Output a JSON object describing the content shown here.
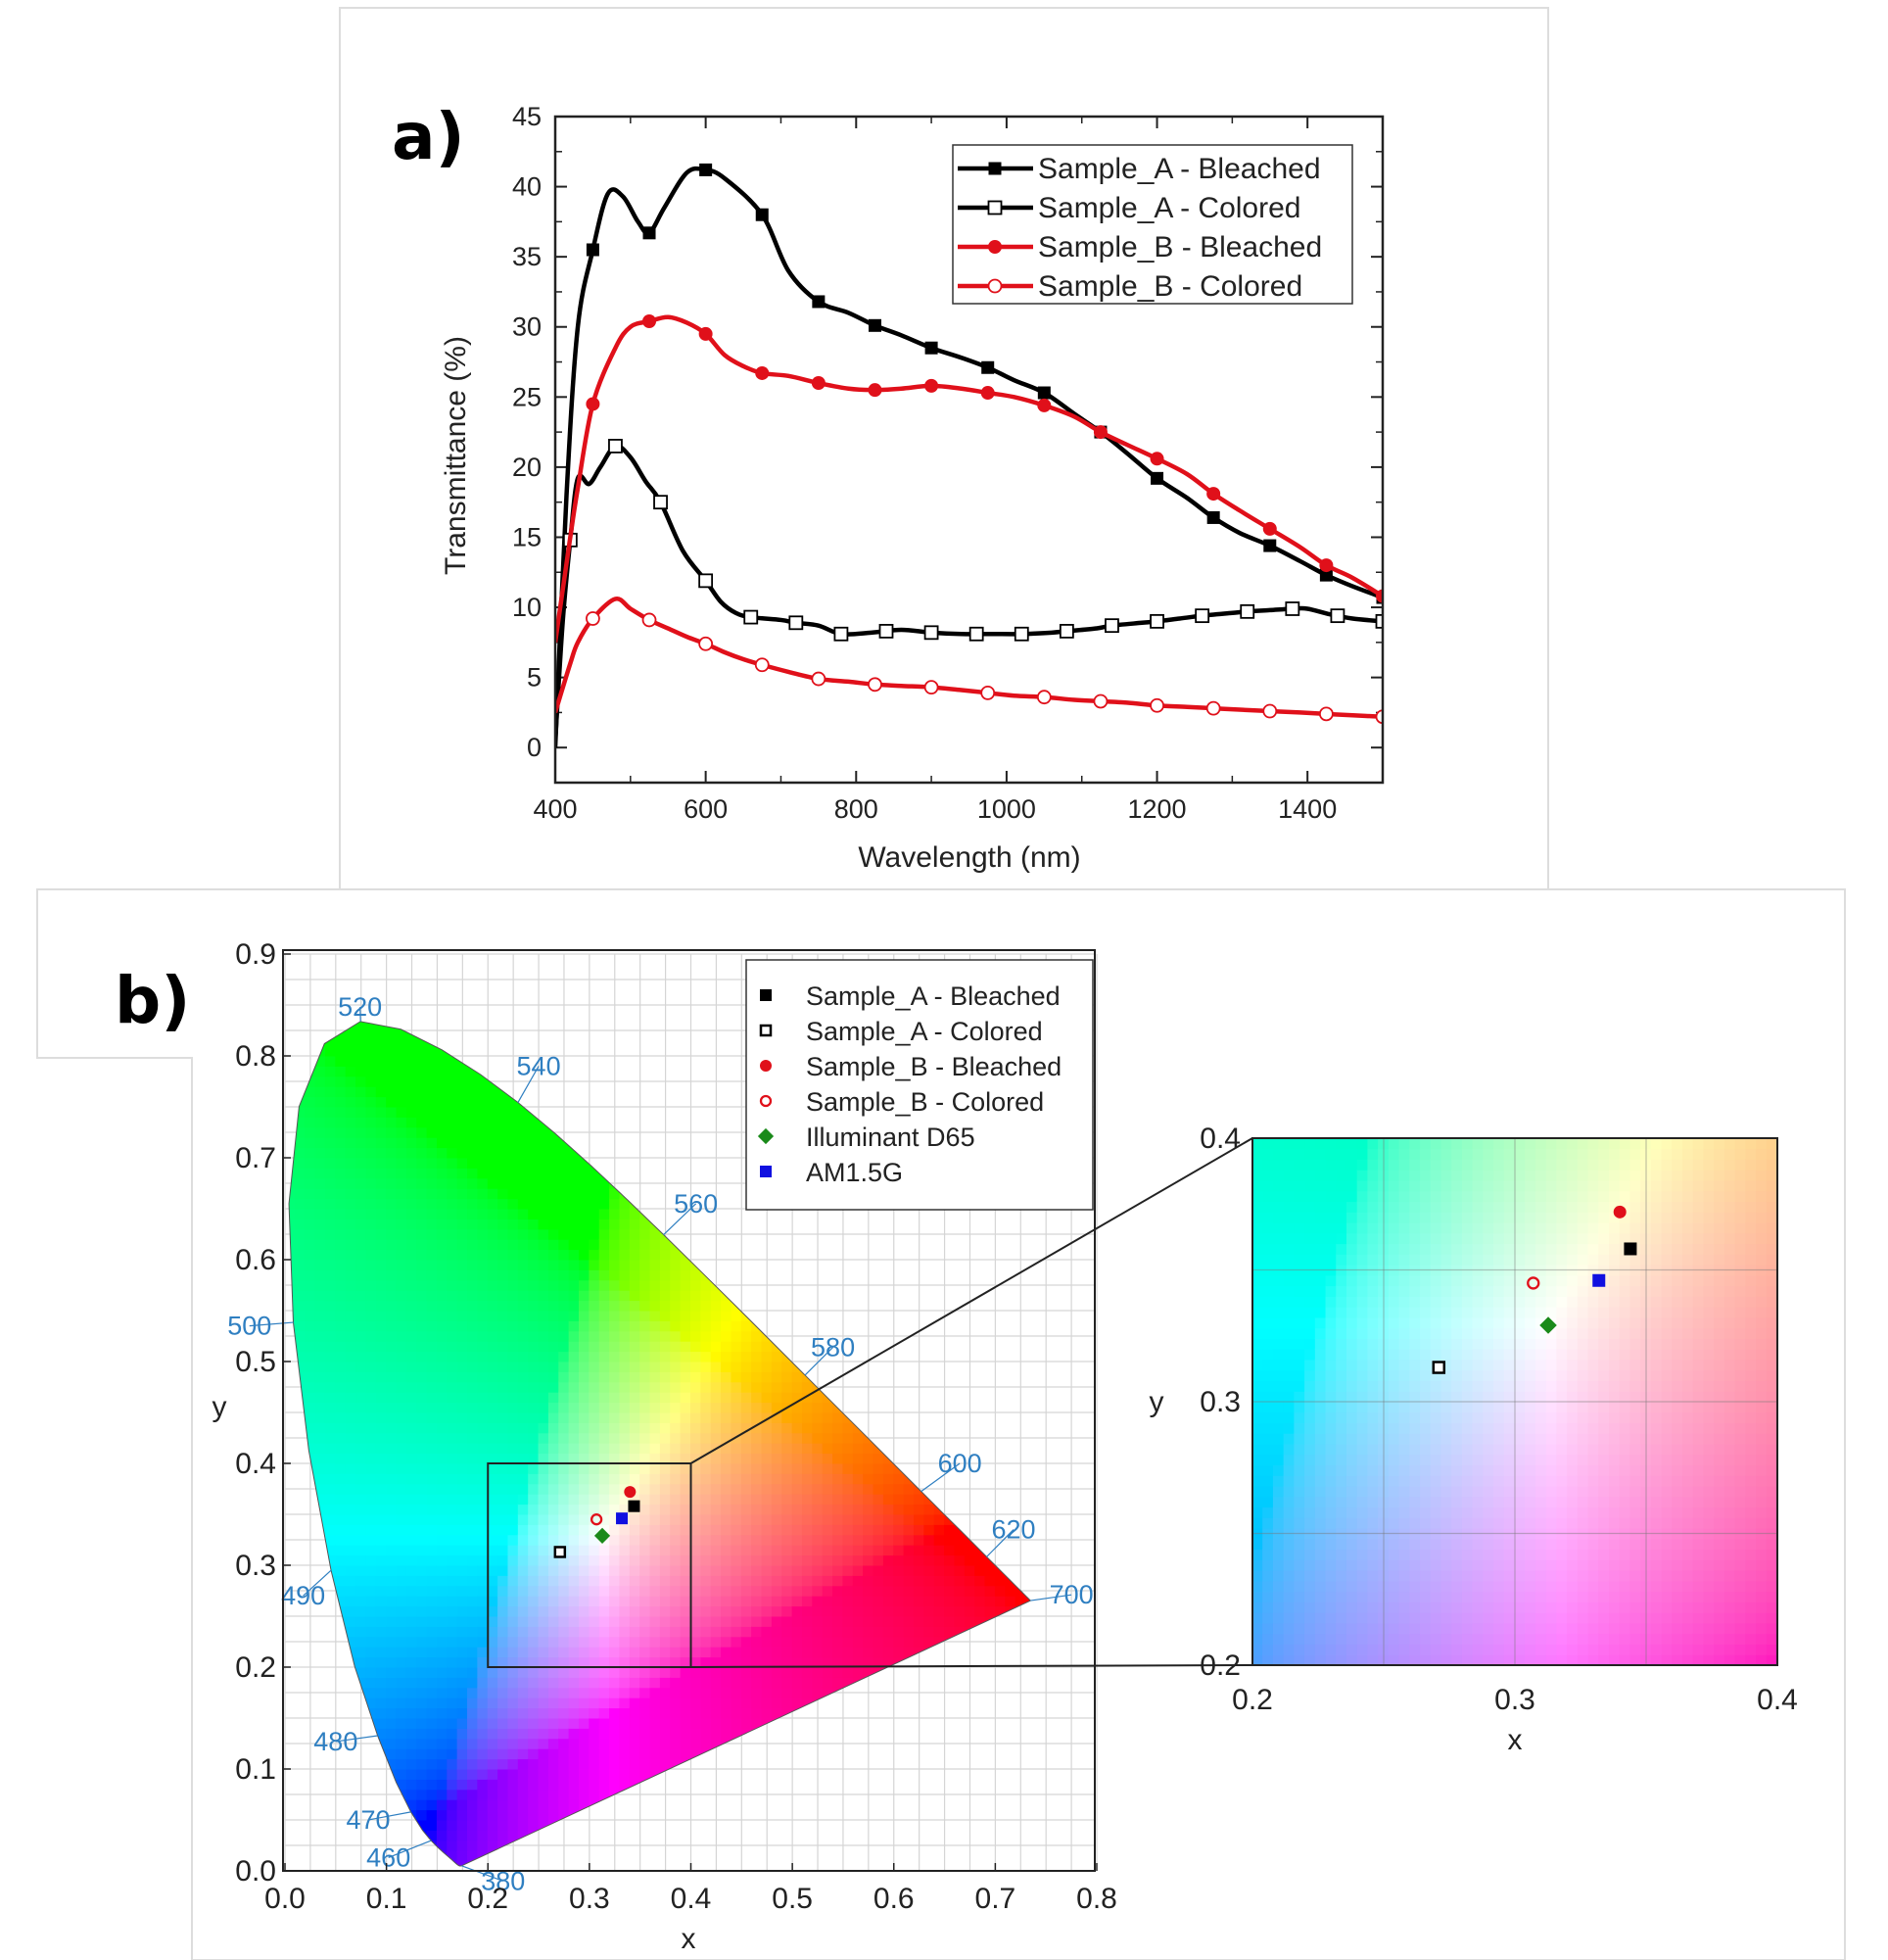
{
  "panel_a": {
    "label": "a)",
    "chart_data": {
      "type": "line",
      "xlabel": "Wavelength (nm)",
      "ylabel": "Transmittance (%)",
      "xlim": [
        400,
        1500
      ],
      "ylim": [
        -2.5,
        45
      ],
      "x_ticks": [
        400,
        600,
        800,
        1000,
        1200,
        1400
      ],
      "y_ticks": [
        0,
        5,
        10,
        15,
        20,
        25,
        30,
        35,
        40,
        45
      ],
      "legend_position": "top-right",
      "series": [
        {
          "name": "Sample_A - Bleached",
          "color": "#000000",
          "marker": "filled-square",
          "x": [
            400,
            415,
            430,
            450,
            470,
            490,
            510,
            525,
            545,
            575,
            600,
            625,
            675,
            710,
            750,
            790,
            825,
            860,
            900,
            940,
            975,
            1010,
            1050,
            1090,
            1125,
            1160,
            1200,
            1240,
            1275,
            1310,
            1350,
            1390,
            1425,
            1460,
            1500
          ],
          "y": [
            0,
            18,
            30,
            35.5,
            39.5,
            39.3,
            37.5,
            36.7,
            38.5,
            41,
            41.2,
            40.6,
            38,
            34,
            31.8,
            31,
            30.1,
            29.4,
            28.5,
            27.8,
            27.1,
            26.2,
            25.3,
            23.8,
            22.5,
            21,
            19.2,
            17.8,
            16.4,
            15.3,
            14.4,
            13.3,
            12.3,
            11.5,
            10.7
          ]
        },
        {
          "name": "Sample_A - Colored",
          "color": "#000000",
          "marker": "open-square",
          "x": [
            400,
            410,
            420,
            430,
            445,
            460,
            480,
            500,
            520,
            540,
            570,
            600,
            620,
            640,
            660,
            700,
            720,
            750,
            780,
            820,
            860,
            900,
            940,
            980,
            1020,
            1060,
            1080,
            1120,
            1140,
            1180,
            1200,
            1230,
            1260,
            1300,
            1320,
            1350,
            1380,
            1400,
            1430,
            1460,
            1500
          ],
          "y": [
            0.5,
            9,
            14.8,
            19.2,
            18.8,
            20,
            21.5,
            20.7,
            19,
            17.5,
            14,
            11.9,
            10.4,
            9.6,
            9.3,
            9.1,
            8.9,
            8.7,
            8.1,
            8.2,
            8.4,
            8.2,
            8.1,
            8.1,
            8.1,
            8.2,
            8.3,
            8.5,
            8.7,
            8.9,
            9.0,
            9.2,
            9.4,
            9.6,
            9.7,
            9.8,
            9.9,
            9.9,
            9.5,
            9.2,
            9.0
          ]
        },
        {
          "name": "Sample_B - Bleached",
          "color": "#e0101a",
          "marker": "filled-circle",
          "x": [
            400,
            420,
            430,
            450,
            480,
            500,
            525,
            550,
            575,
            600,
            625,
            650,
            675,
            710,
            750,
            790,
            825,
            860,
            900,
            940,
            975,
            1010,
            1050,
            1090,
            1125,
            1160,
            1200,
            1240,
            1275,
            1310,
            1350,
            1390,
            1425,
            1460,
            1500
          ],
          "y": [
            7.5,
            15,
            18.5,
            24.5,
            28.5,
            30,
            30.4,
            30.7,
            30.3,
            29.5,
            28,
            27.2,
            26.7,
            26.5,
            26,
            25.6,
            25.5,
            25.6,
            25.8,
            25.6,
            25.3,
            25,
            24.4,
            23.6,
            22.5,
            21.6,
            20.6,
            19.5,
            18.1,
            16.9,
            15.6,
            14.3,
            13,
            12.1,
            10.8
          ]
        },
        {
          "name": "Sample_B - Colored",
          "color": "#e0101a",
          "marker": "open-circle",
          "x": [
            400,
            420,
            430,
            450,
            480,
            500,
            525,
            550,
            575,
            600,
            625,
            650,
            675,
            710,
            750,
            790,
            825,
            860,
            900,
            940,
            975,
            1010,
            1050,
            1090,
            1125,
            1160,
            1200,
            1240,
            1275,
            1310,
            1350,
            1390,
            1425,
            1460,
            1500
          ],
          "y": [
            2.5,
            6,
            7.5,
            9.2,
            10.6,
            9.9,
            9.1,
            8.5,
            7.9,
            7.4,
            6.8,
            6.3,
            5.9,
            5.4,
            4.9,
            4.7,
            4.5,
            4.4,
            4.3,
            4.1,
            3.9,
            3.7,
            3.6,
            3.4,
            3.3,
            3.2,
            3.0,
            2.9,
            2.8,
            2.7,
            2.6,
            2.5,
            2.4,
            2.3,
            2.2
          ]
        }
      ],
      "marker_x": {
        "Sample_A - Bleached": [
          450,
          525,
          600,
          675,
          750,
          825,
          900,
          975,
          1050,
          1125,
          1200,
          1275,
          1350,
          1425,
          1500
        ],
        "Sample_A - Colored": [
          420,
          480,
          540,
          600,
          660,
          720,
          780,
          840,
          900,
          960,
          1020,
          1080,
          1140,
          1200,
          1260,
          1320,
          1380,
          1440,
          1500
        ],
        "Sample_B - Bleached": [
          450,
          525,
          600,
          675,
          750,
          825,
          900,
          975,
          1050,
          1125,
          1200,
          1275,
          1350,
          1425,
          1500
        ],
        "Sample_B - Colored": [
          450,
          525,
          600,
          675,
          750,
          825,
          900,
          975,
          1050,
          1125,
          1200,
          1275,
          1350,
          1425,
          1500
        ]
      }
    }
  },
  "panel_b": {
    "label": "b)",
    "chart_data": {
      "type": "scatter",
      "title": "",
      "xlabel": "x",
      "ylabel": "y",
      "xlim": [
        0.0,
        0.8
      ],
      "ylim": [
        0.0,
        0.9
      ],
      "x_ticks": [
        "0.0",
        "0.1",
        "0.2",
        "0.3",
        "0.4",
        "0.5",
        "0.6",
        "0.7",
        "0.8"
      ],
      "y_ticks": [
        "0.0",
        "0.1",
        "0.2",
        "0.3",
        "0.4",
        "0.5",
        "0.6",
        "0.7",
        "0.8",
        "0.9"
      ],
      "legend_position": "top-right",
      "wavelength_labels": [
        "520",
        "540",
        "560",
        "580",
        "600",
        "620",
        "700",
        "500",
        "490",
        "480",
        "470",
        "460",
        "380"
      ],
      "series": [
        {
          "name": "Sample_A - Bleached",
          "color": "#000000",
          "marker": "filled-square",
          "x": 0.344,
          "y": 0.358
        },
        {
          "name": "Sample_A - Colored",
          "color": "#000000",
          "marker": "open-square",
          "x": 0.271,
          "y": 0.313
        },
        {
          "name": "Sample_B - Bleached",
          "color": "#e0101a",
          "marker": "filled-circle",
          "x": 0.34,
          "y": 0.372
        },
        {
          "name": "Sample_B - Colored",
          "color": "#e0101a",
          "marker": "open-circle",
          "x": 0.307,
          "y": 0.345
        },
        {
          "name": "Illuminant D65",
          "color": "#1a8a1a",
          "marker": "filled-diamond",
          "x": 0.3127,
          "y": 0.329
        },
        {
          "name": "AM1.5G",
          "color": "#1010e0",
          "marker": "filled-square",
          "x": 0.332,
          "y": 0.346
        }
      ],
      "zoom_box": {
        "xlim": [
          0.2,
          0.4
        ],
        "ylim": [
          0.2,
          0.4
        ]
      }
    },
    "inset": {
      "xlabel": "x",
      "ylabel": "y",
      "x_ticks": [
        "0.2",
        "0.3",
        "0.4"
      ],
      "y_ticks": [
        "0.2",
        "0.3",
        "0.4"
      ]
    }
  }
}
